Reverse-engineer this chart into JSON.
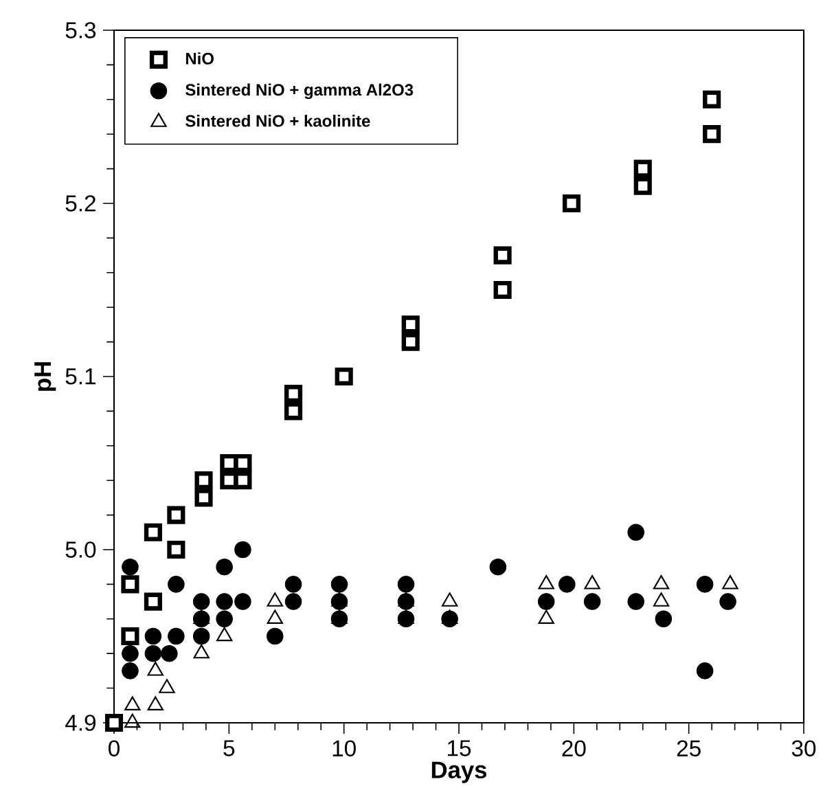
{
  "chart_data": {
    "type": "scatter",
    "xlabel": "Days",
    "ylabel": "pH",
    "xlim": [
      0,
      30
    ],
    "ylim": [
      4.9,
      5.3
    ],
    "xticks": [
      0,
      5,
      10,
      15,
      20,
      25,
      30
    ],
    "yticks": [
      {
        "value": 4.9,
        "label": "4.9"
      },
      {
        "value": 5.0,
        "label": "5.0"
      },
      {
        "value": 5.1,
        "label": "5.1"
      },
      {
        "value": 5.2,
        "label": "5.2"
      },
      {
        "value": 5.3,
        "label": "5.3"
      }
    ],
    "legend": "top left",
    "grid": false,
    "series": [
      {
        "name": "NiO",
        "color": "#000000",
        "marker": "square",
        "x": [
          0,
          0.7,
          0.7,
          1.7,
          1.7,
          2.7,
          2.7,
          3.9,
          3.9,
          5.0,
          5.0,
          5.6,
          5.6,
          7.8,
          7.8,
          10.0,
          12.9,
          12.9,
          16.9,
          16.9,
          19.9,
          23.0,
          23.0,
          26.0,
          26.0
        ],
        "values": [
          4.9,
          4.98,
          4.95,
          5.01,
          4.97,
          5.02,
          5.0,
          5.04,
          5.03,
          5.05,
          5.04,
          5.05,
          5.04,
          5.09,
          5.08,
          5.1,
          5.13,
          5.12,
          5.17,
          5.15,
          5.2,
          5.22,
          5.21,
          5.26,
          5.24
        ]
      },
      {
        "name": "Sintered NiO + gamma Al2O3",
        "color": "#000000",
        "marker": "circle",
        "x": [
          0.7,
          0.7,
          0.7,
          1.7,
          1.7,
          2.4,
          2.7,
          2.7,
          3.8,
          3.8,
          3.8,
          4.8,
          4.8,
          4.8,
          5.6,
          5.6,
          7.0,
          7.8,
          7.8,
          9.8,
          9.8,
          9.8,
          12.7,
          12.7,
          12.7,
          14.6,
          16.7,
          18.8,
          19.7,
          20.8,
          22.7,
          22.7,
          23.9,
          25.7,
          25.7,
          26.7
        ],
        "values": [
          4.99,
          4.94,
          4.93,
          4.95,
          4.94,
          4.94,
          4.98,
          4.95,
          4.95,
          4.96,
          4.97,
          4.99,
          4.97,
          4.96,
          5.0,
          4.97,
          4.95,
          4.98,
          4.97,
          4.98,
          4.97,
          4.96,
          4.98,
          4.97,
          4.96,
          4.96,
          4.99,
          4.97,
          4.98,
          4.97,
          5.01,
          4.97,
          4.96,
          4.98,
          4.93,
          4.97
        ]
      },
      {
        "name": "Sintered NiO + kaolinite",
        "color": "#000000",
        "marker": "triangle",
        "x": [
          0.8,
          0.8,
          1.8,
          1.8,
          2.3,
          3.8,
          3.8,
          4.8,
          7.0,
          7.0,
          9.8,
          9.8,
          12.7,
          12.7,
          14.6,
          14.6,
          18.8,
          18.8,
          20.8,
          23.8,
          23.8,
          26.8
        ],
        "values": [
          4.91,
          4.9,
          4.93,
          4.91,
          4.92,
          4.96,
          4.94,
          4.95,
          4.97,
          4.96,
          4.97,
          4.96,
          4.97,
          4.96,
          4.97,
          4.96,
          4.98,
          4.96,
          4.98,
          4.98,
          4.97,
          4.98
        ]
      }
    ]
  }
}
